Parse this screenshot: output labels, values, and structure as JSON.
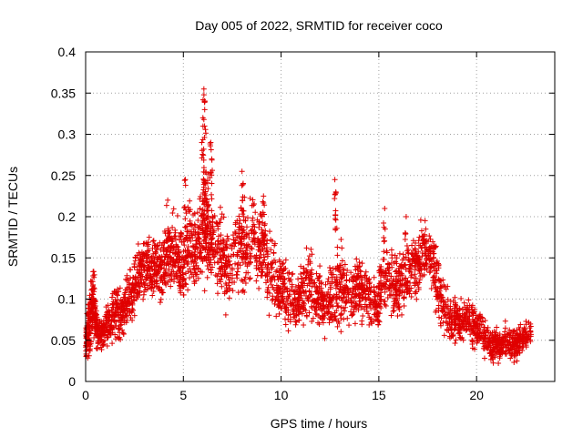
{
  "chart_data": {
    "type": "scatter",
    "title": "Day 005 of 2022, SRMTID for receiver coco",
    "xlabel": "GPS time / hours",
    "ylabel": "SRMTID / TECUs",
    "xlim": [
      0,
      24
    ],
    "ylim": [
      0,
      0.4
    ],
    "xticks": [
      0,
      5,
      10,
      15,
      20
    ],
    "xtick_labels": [
      "0",
      "5",
      "10",
      "15",
      "20"
    ],
    "yticks": [
      0,
      0.05,
      0.1,
      0.15,
      0.2,
      0.25,
      0.3,
      0.35,
      0.4
    ],
    "ytick_labels": [
      "0",
      "0.05",
      "0.1",
      "0.15",
      "0.2",
      "0.25",
      "0.3",
      "0.35",
      "0.4"
    ],
    "grid": true,
    "marker": "plus",
    "color": "#e00000",
    "series": [
      {
        "name": "SRMTID",
        "envelope_note": "approximate typical values sampled from the dense scatter",
        "x": [
          0.0,
          0.1,
          0.2,
          0.3,
          0.4,
          0.5,
          0.6,
          0.8,
          1.0,
          1.2,
          1.4,
          1.6,
          1.8,
          2.0,
          2.2,
          2.4,
          2.6,
          2.8,
          3.0,
          3.2,
          3.4,
          3.6,
          3.8,
          4.0,
          4.2,
          4.4,
          4.6,
          4.8,
          5.0,
          5.2,
          5.4,
          5.6,
          5.8,
          6.0,
          6.1,
          6.2,
          6.3,
          6.5,
          6.8,
          7.0,
          7.2,
          7.5,
          7.8,
          8.0,
          8.2,
          8.5,
          8.8,
          9.0,
          9.2,
          9.5,
          9.8,
          10.0,
          10.2,
          10.5,
          10.8,
          11.0,
          11.2,
          11.5,
          11.8,
          12.0,
          12.2,
          12.5,
          12.8,
          13.0,
          13.2,
          13.5,
          13.8,
          14.0,
          14.2,
          14.5,
          14.8,
          15.0,
          15.2,
          15.5,
          15.8,
          16.0,
          16.2,
          16.5,
          16.8,
          17.0,
          17.2,
          17.5,
          17.8,
          18.0,
          18.2,
          18.5,
          18.8,
          19.0,
          19.2,
          19.5,
          19.8,
          20.0,
          20.2,
          20.5,
          20.8,
          21.0,
          21.2,
          21.5,
          21.8,
          22.0,
          22.2,
          22.5,
          22.8
        ],
        "y_center": [
          0.04,
          0.06,
          0.07,
          0.09,
          0.1,
          0.08,
          0.06,
          0.055,
          0.065,
          0.075,
          0.08,
          0.085,
          0.08,
          0.09,
          0.1,
          0.11,
          0.12,
          0.13,
          0.13,
          0.14,
          0.13,
          0.14,
          0.13,
          0.14,
          0.15,
          0.16,
          0.15,
          0.14,
          0.15,
          0.16,
          0.17,
          0.16,
          0.18,
          0.19,
          0.2,
          0.19,
          0.18,
          0.17,
          0.16,
          0.15,
          0.14,
          0.15,
          0.16,
          0.17,
          0.16,
          0.17,
          0.16,
          0.17,
          0.16,
          0.13,
          0.12,
          0.12,
          0.11,
          0.1,
          0.09,
          0.1,
          0.11,
          0.12,
          0.1,
          0.1,
          0.09,
          0.1,
          0.11,
          0.12,
          0.11,
          0.1,
          0.11,
          0.12,
          0.11,
          0.1,
          0.09,
          0.1,
          0.12,
          0.13,
          0.12,
          0.11,
          0.12,
          0.13,
          0.14,
          0.14,
          0.15,
          0.16,
          0.14,
          0.12,
          0.1,
          0.08,
          0.07,
          0.08,
          0.07,
          0.08,
          0.07,
          0.06,
          0.065,
          0.05,
          0.04,
          0.05,
          0.04,
          0.05,
          0.045,
          0.04,
          0.05,
          0.055,
          0.06
        ],
        "y_spread": [
          0.02,
          0.03,
          0.04,
          0.04,
          0.04,
          0.03,
          0.02,
          0.02,
          0.02,
          0.025,
          0.03,
          0.03,
          0.03,
          0.03,
          0.03,
          0.035,
          0.035,
          0.035,
          0.035,
          0.035,
          0.04,
          0.04,
          0.04,
          0.04,
          0.04,
          0.045,
          0.045,
          0.05,
          0.05,
          0.05,
          0.05,
          0.05,
          0.06,
          0.08,
          0.09,
          0.07,
          0.06,
          0.05,
          0.05,
          0.05,
          0.05,
          0.05,
          0.05,
          0.06,
          0.05,
          0.05,
          0.05,
          0.05,
          0.05,
          0.05,
          0.04,
          0.04,
          0.04,
          0.04,
          0.03,
          0.035,
          0.04,
          0.04,
          0.035,
          0.035,
          0.035,
          0.035,
          0.04,
          0.06,
          0.05,
          0.04,
          0.04,
          0.04,
          0.035,
          0.035,
          0.03,
          0.035,
          0.05,
          0.04,
          0.04,
          0.035,
          0.04,
          0.04,
          0.04,
          0.04,
          0.04,
          0.035,
          0.035,
          0.04,
          0.035,
          0.03,
          0.025,
          0.025,
          0.025,
          0.025,
          0.025,
          0.02,
          0.02,
          0.02,
          0.02,
          0.02,
          0.015,
          0.02,
          0.02,
          0.02,
          0.02,
          0.015,
          0.015
        ],
        "peaks": [
          {
            "x": 6.05,
            "y": 0.355
          },
          {
            "x": 6.1,
            "y": 0.34
          },
          {
            "x": 6.0,
            "y": 0.32
          },
          {
            "x": 6.4,
            "y": 0.29
          },
          {
            "x": 6.45,
            "y": 0.27
          },
          {
            "x": 8.0,
            "y": 0.255
          },
          {
            "x": 12.75,
            "y": 0.245
          },
          {
            "x": 12.8,
            "y": 0.23
          },
          {
            "x": 5.1,
            "y": 0.245
          },
          {
            "x": 4.2,
            "y": 0.22
          },
          {
            "x": 9.1,
            "y": 0.225
          },
          {
            "x": 15.3,
            "y": 0.21
          },
          {
            "x": 16.4,
            "y": 0.2
          },
          {
            "x": 17.4,
            "y": 0.185
          }
        ]
      }
    ]
  }
}
